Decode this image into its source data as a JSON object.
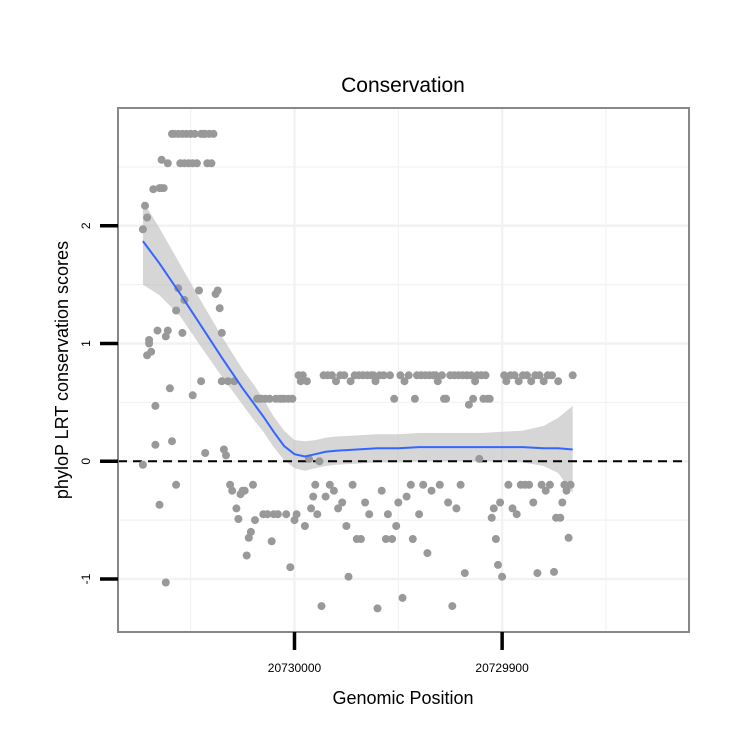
{
  "chart_data": {
    "type": "scatter",
    "title": "Conservation",
    "xlabel": "Genomic Position",
    "ylabel": "phyloP LRT conservation scores",
    "x_reversed": true,
    "xlim": [
      20730085,
      20729810
    ],
    "ylim": [
      -1.45,
      3.0
    ],
    "x_ticks": [
      {
        "value": 20730000,
        "label": "20730000"
      },
      {
        "value": 20729900,
        "label": "20729900"
      }
    ],
    "y_ticks": [
      {
        "value": -1,
        "label": "-1"
      },
      {
        "value": 0,
        "label": "0"
      },
      {
        "value": 1,
        "label": "1"
      },
      {
        "value": 2,
        "label": "2"
      }
    ],
    "reference_line": {
      "y": 0,
      "style": "dashed"
    },
    "colors": {
      "points": "#999999",
      "smooth": "#3366ff",
      "band": "#bbbbbb",
      "panel_border": "#888888",
      "grid": "#f2f2f2"
    },
    "points": [
      {
        "x": 20730073,
        "y": -0.03
      },
      {
        "x": 20730073,
        "y": 1.97
      },
      {
        "x": 20730072,
        "y": 2.17
      },
      {
        "x": 20730071,
        "y": 2.07
      },
      {
        "x": 20730071,
        "y": 0.9
      },
      {
        "x": 20730070,
        "y": 1.0
      },
      {
        "x": 20730070,
        "y": 1.03
      },
      {
        "x": 20730069,
        "y": 0.93
      },
      {
        "x": 20730068,
        "y": 2.31
      },
      {
        "x": 20730067,
        "y": 0.14
      },
      {
        "x": 20730067,
        "y": 0.47
      },
      {
        "x": 20730066,
        "y": 1.11
      },
      {
        "x": 20730065,
        "y": -0.37
      },
      {
        "x": 20730065,
        "y": 2.32
      },
      {
        "x": 20730064,
        "y": 2.56
      },
      {
        "x": 20730064,
        "y": 2.32
      },
      {
        "x": 20730063,
        "y": 2.32
      },
      {
        "x": 20730062,
        "y": 1.06
      },
      {
        "x": 20730062,
        "y": -1.03
      },
      {
        "x": 20730061,
        "y": 2.53
      },
      {
        "x": 20730061,
        "y": 1.11
      },
      {
        "x": 20730060,
        "y": 0.62
      },
      {
        "x": 20730059,
        "y": 0.17
      },
      {
        "x": 20730059,
        "y": 2.78
      },
      {
        "x": 20730058,
        "y": 2.78
      },
      {
        "x": 20730057,
        "y": -0.2
      },
      {
        "x": 20730057,
        "y": 1.28
      },
      {
        "x": 20730056,
        "y": 1.47
      },
      {
        "x": 20730056,
        "y": 2.78
      },
      {
        "x": 20730055,
        "y": 2.53
      },
      {
        "x": 20730054,
        "y": 1.09
      },
      {
        "x": 20730054,
        "y": 2.78
      },
      {
        "x": 20730053,
        "y": 2.53
      },
      {
        "x": 20730053,
        "y": 1.37
      },
      {
        "x": 20730052,
        "y": 2.78
      },
      {
        "x": 20730051,
        "y": 2.53
      },
      {
        "x": 20730050,
        "y": 2.78
      },
      {
        "x": 20730049,
        "y": 0.56
      },
      {
        "x": 20730049,
        "y": 2.53
      },
      {
        "x": 20730048,
        "y": 2.78
      },
      {
        "x": 20730047,
        "y": 2.53
      },
      {
        "x": 20730046,
        "y": 1.45
      },
      {
        "x": 20730045,
        "y": 0.68
      },
      {
        "x": 20730045,
        "y": 2.78
      },
      {
        "x": 20730044,
        "y": 2.78
      },
      {
        "x": 20730043,
        "y": 0.07
      },
      {
        "x": 20730043,
        "y": 2.78
      },
      {
        "x": 20730042,
        "y": 2.53
      },
      {
        "x": 20730041,
        "y": 2.78
      },
      {
        "x": 20730040,
        "y": 2.53
      },
      {
        "x": 20730039,
        "y": 2.78
      },
      {
        "x": 20730038,
        "y": 1.42
      },
      {
        "x": 20730037,
        "y": 1.45
      },
      {
        "x": 20730036,
        "y": 1.3
      },
      {
        "x": 20730035,
        "y": 1.09
      },
      {
        "x": 20730035,
        "y": 0.68
      },
      {
        "x": 20730034,
        "y": 0.1
      },
      {
        "x": 20730033,
        "y": 0.05
      },
      {
        "x": 20730032,
        "y": 0.68
      },
      {
        "x": 20730031,
        "y": -0.2
      },
      {
        "x": 20730030,
        "y": -0.25
      },
      {
        "x": 20730029,
        "y": 0.68
      },
      {
        "x": 20730028,
        "y": -0.4
      },
      {
        "x": 20730027,
        "y": -0.49
      },
      {
        "x": 20730026,
        "y": -0.28
      },
      {
        "x": 20730025,
        "y": -0.25
      },
      {
        "x": 20730024,
        "y": -0.25
      },
      {
        "x": 20730023,
        "y": -0.8
      },
      {
        "x": 20730022,
        "y": -0.65
      },
      {
        "x": 20730021,
        "y": -0.6
      },
      {
        "x": 20730020,
        "y": -0.2
      },
      {
        "x": 20730019,
        "y": -0.5
      },
      {
        "x": 20730018,
        "y": 0.53
      },
      {
        "x": 20730017,
        "y": 0.53
      },
      {
        "x": 20730016,
        "y": 0.53
      },
      {
        "x": 20730015,
        "y": -0.45
      },
      {
        "x": 20730014,
        "y": 0.53
      },
      {
        "x": 20730013,
        "y": -0.45
      },
      {
        "x": 20730012,
        "y": 0.53
      },
      {
        "x": 20730011,
        "y": -0.68
      },
      {
        "x": 20730010,
        "y": -0.45
      },
      {
        "x": 20730009,
        "y": 0.53
      },
      {
        "x": 20730008,
        "y": -0.45
      },
      {
        "x": 20730007,
        "y": 0.53
      },
      {
        "x": 20730006,
        "y": 0.53
      },
      {
        "x": 20730005,
        "y": 0.53
      },
      {
        "x": 20730004,
        "y": -0.45
      },
      {
        "x": 20730003,
        "y": 0.53
      },
      {
        "x": 20730002,
        "y": -0.9
      },
      {
        "x": 20730001,
        "y": 0.53
      },
      {
        "x": 20730000,
        "y": -0.5
      },
      {
        "x": 20729999,
        "y": -0.45
      },
      {
        "x": 20729998,
        "y": 0.73
      },
      {
        "x": 20729997,
        "y": 0.68
      },
      {
        "x": 20729996,
        "y": 0.73
      },
      {
        "x": 20729995,
        "y": -0.55
      },
      {
        "x": 20729994,
        "y": 0.68
      },
      {
        "x": 20729993,
        "y": 0.02
      },
      {
        "x": 20729992,
        "y": -0.4
      },
      {
        "x": 20729991,
        "y": -0.3
      },
      {
        "x": 20729990,
        "y": -0.2
      },
      {
        "x": 20729989,
        "y": -0.45
      },
      {
        "x": 20729988,
        "y": 0.0
      },
      {
        "x": 20729987,
        "y": -1.23
      },
      {
        "x": 20729986,
        "y": 0.73
      },
      {
        "x": 20729985,
        "y": -0.3
      },
      {
        "x": 20729984,
        "y": 0.73
      },
      {
        "x": 20729983,
        "y": -0.2
      },
      {
        "x": 20729982,
        "y": 0.73
      },
      {
        "x": 20729981,
        "y": -0.25
      },
      {
        "x": 20729980,
        "y": 0.68
      },
      {
        "x": 20729979,
        "y": -0.4
      },
      {
        "x": 20729978,
        "y": 0.73
      },
      {
        "x": 20729977,
        "y": -0.35
      },
      {
        "x": 20729976,
        "y": 0.73
      },
      {
        "x": 20729975,
        "y": -0.55
      },
      {
        "x": 20729974,
        "y": -0.98
      },
      {
        "x": 20729973,
        "y": 0.68
      },
      {
        "x": 20729972,
        "y": -0.2
      },
      {
        "x": 20729971,
        "y": 0.73
      },
      {
        "x": 20729970,
        "y": -0.66
      },
      {
        "x": 20729969,
        "y": 0.73
      },
      {
        "x": 20729968,
        "y": -0.66
      },
      {
        "x": 20729967,
        "y": 0.73
      },
      {
        "x": 20729966,
        "y": -0.35
      },
      {
        "x": 20729965,
        "y": 0.73
      },
      {
        "x": 20729964,
        "y": -0.45
      },
      {
        "x": 20729963,
        "y": 0.73
      },
      {
        "x": 20729962,
        "y": 0.73
      },
      {
        "x": 20729961,
        "y": 0.68
      },
      {
        "x": 20729960,
        "y": -1.25
      },
      {
        "x": 20729959,
        "y": 0.73
      },
      {
        "x": 20729958,
        "y": -0.25
      },
      {
        "x": 20729957,
        "y": 0.73
      },
      {
        "x": 20729956,
        "y": -0.66
      },
      {
        "x": 20729955,
        "y": -0.45
      },
      {
        "x": 20729954,
        "y": 0.73
      },
      {
        "x": 20729953,
        "y": -0.66
      },
      {
        "x": 20729952,
        "y": 0.53
      },
      {
        "x": 20729951,
        "y": -0.55
      },
      {
        "x": 20729950,
        "y": -0.35
      },
      {
        "x": 20729949,
        "y": 0.73
      },
      {
        "x": 20729948,
        "y": -1.16
      },
      {
        "x": 20729947,
        "y": 0.68
      },
      {
        "x": 20729946,
        "y": -0.3
      },
      {
        "x": 20729945,
        "y": 0.73
      },
      {
        "x": 20729944,
        "y": -0.2
      },
      {
        "x": 20729943,
        "y": -0.66
      },
      {
        "x": 20729942,
        "y": 0.53
      },
      {
        "x": 20729941,
        "y": 0.73
      },
      {
        "x": 20729940,
        "y": -0.45
      },
      {
        "x": 20729939,
        "y": 0.73
      },
      {
        "x": 20729938,
        "y": -0.2
      },
      {
        "x": 20729937,
        "y": 0.73
      },
      {
        "x": 20729936,
        "y": -0.78
      },
      {
        "x": 20729935,
        "y": 0.73
      },
      {
        "x": 20729934,
        "y": -0.25
      },
      {
        "x": 20729933,
        "y": 0.73
      },
      {
        "x": 20729932,
        "y": 0.73
      },
      {
        "x": 20729931,
        "y": 0.68
      },
      {
        "x": 20729930,
        "y": -0.2
      },
      {
        "x": 20729929,
        "y": 0.73
      },
      {
        "x": 20729928,
        "y": 0.53
      },
      {
        "x": 20729927,
        "y": 0.53
      },
      {
        "x": 20729926,
        "y": -0.35
      },
      {
        "x": 20729925,
        "y": 0.73
      },
      {
        "x": 20729924,
        "y": -1.23
      },
      {
        "x": 20729923,
        "y": 0.73
      },
      {
        "x": 20729922,
        "y": -0.4
      },
      {
        "x": 20729921,
        "y": 0.73
      },
      {
        "x": 20729920,
        "y": -0.2
      },
      {
        "x": 20729919,
        "y": 0.73
      },
      {
        "x": 20729918,
        "y": -0.95
      },
      {
        "x": 20729917,
        "y": 0.73
      },
      {
        "x": 20729916,
        "y": 0.48
      },
      {
        "x": 20729915,
        "y": 0.73
      },
      {
        "x": 20729914,
        "y": 0.53
      },
      {
        "x": 20729913,
        "y": 0.68
      },
      {
        "x": 20729912,
        "y": 0.73
      },
      {
        "x": 20729911,
        "y": 0.02
      },
      {
        "x": 20729910,
        "y": 0.73
      },
      {
        "x": 20729909,
        "y": 0.53
      },
      {
        "x": 20729908,
        "y": 0.73
      },
      {
        "x": 20729907,
        "y": 0.53
      },
      {
        "x": 20729906,
        "y": 0.53
      },
      {
        "x": 20729905,
        "y": -0.48
      },
      {
        "x": 20729904,
        "y": -0.4
      },
      {
        "x": 20729903,
        "y": -0.66
      },
      {
        "x": 20729902,
        "y": -0.88
      },
      {
        "x": 20729901,
        "y": -0.35
      },
      {
        "x": 20729900,
        "y": -0.98
      },
      {
        "x": 20729899,
        "y": 0.73
      },
      {
        "x": 20729898,
        "y": 0.68
      },
      {
        "x": 20729897,
        "y": -0.2
      },
      {
        "x": 20729896,
        "y": 0.73
      },
      {
        "x": 20729895,
        "y": -0.4
      },
      {
        "x": 20729894,
        "y": 0.73
      },
      {
        "x": 20729893,
        "y": -0.45
      },
      {
        "x": 20729892,
        "y": 0.68
      },
      {
        "x": 20729891,
        "y": -0.2
      },
      {
        "x": 20729890,
        "y": 0.73
      },
      {
        "x": 20729889,
        "y": -0.2
      },
      {
        "x": 20729888,
        "y": 0.73
      },
      {
        "x": 20729887,
        "y": -0.2
      },
      {
        "x": 20729886,
        "y": 0.68
      },
      {
        "x": 20729885,
        "y": -0.35
      },
      {
        "x": 20729884,
        "y": 0.73
      },
      {
        "x": 20729883,
        "y": -0.95
      },
      {
        "x": 20729882,
        "y": 0.73
      },
      {
        "x": 20729881,
        "y": -0.2
      },
      {
        "x": 20729880,
        "y": 0.68
      },
      {
        "x": 20729879,
        "y": -0.25
      },
      {
        "x": 20729878,
        "y": 0.73
      },
      {
        "x": 20729877,
        "y": -0.2
      },
      {
        "x": 20729876,
        "y": 0.73
      },
      {
        "x": 20729875,
        "y": -0.94
      },
      {
        "x": 20729874,
        "y": -0.48
      },
      {
        "x": 20729873,
        "y": 0.68
      },
      {
        "x": 20729872,
        "y": -0.48
      },
      {
        "x": 20729871,
        "y": -0.35
      },
      {
        "x": 20729870,
        "y": -0.2
      },
      {
        "x": 20729869,
        "y": -0.25
      },
      {
        "x": 20729868,
        "y": -0.65
      },
      {
        "x": 20729867,
        "y": -0.2
      },
      {
        "x": 20729866,
        "y": 0.73
      }
    ],
    "smooth_fit": [
      {
        "x": 20730073,
        "y": 1.87,
        "lo": 1.5,
        "hi": 2.21
      },
      {
        "x": 20730065,
        "y": 1.68,
        "lo": 1.41,
        "hi": 1.98
      },
      {
        "x": 20730055,
        "y": 1.42,
        "lo": 1.23,
        "hi": 1.67
      },
      {
        "x": 20730045,
        "y": 1.15,
        "lo": 0.97,
        "hi": 1.36
      },
      {
        "x": 20730035,
        "y": 0.88,
        "lo": 0.72,
        "hi": 1.06
      },
      {
        "x": 20730025,
        "y": 0.62,
        "lo": 0.48,
        "hi": 0.78
      },
      {
        "x": 20730020,
        "y": 0.5,
        "lo": 0.36,
        "hi": 0.66
      },
      {
        "x": 20730015,
        "y": 0.38,
        "lo": 0.25,
        "hi": 0.53
      },
      {
        "x": 20730010,
        "y": 0.25,
        "lo": 0.12,
        "hi": 0.38
      },
      {
        "x": 20730005,
        "y": 0.13,
        "lo": 0.01,
        "hi": 0.26
      },
      {
        "x": 20730000,
        "y": 0.06,
        "lo": -0.06,
        "hi": 0.18
      },
      {
        "x": 20729995,
        "y": 0.04,
        "lo": -0.08,
        "hi": 0.17
      },
      {
        "x": 20729990,
        "y": 0.06,
        "lo": -0.06,
        "hi": 0.18
      },
      {
        "x": 20729985,
        "y": 0.08,
        "lo": -0.04,
        "hi": 0.2
      },
      {
        "x": 20729980,
        "y": 0.09,
        "lo": -0.03,
        "hi": 0.21
      },
      {
        "x": 20729970,
        "y": 0.1,
        "lo": -0.02,
        "hi": 0.22
      },
      {
        "x": 20729960,
        "y": 0.11,
        "lo": -0.01,
        "hi": 0.23
      },
      {
        "x": 20729950,
        "y": 0.11,
        "lo": -0.01,
        "hi": 0.23
      },
      {
        "x": 20729940,
        "y": 0.12,
        "lo": 0.0,
        "hi": 0.24
      },
      {
        "x": 20729930,
        "y": 0.12,
        "lo": 0.0,
        "hi": 0.24
      },
      {
        "x": 20729920,
        "y": 0.12,
        "lo": 0.0,
        "hi": 0.24
      },
      {
        "x": 20729910,
        "y": 0.12,
        "lo": 0.0,
        "hi": 0.24
      },
      {
        "x": 20729900,
        "y": 0.12,
        "lo": 0.0,
        "hi": 0.25
      },
      {
        "x": 20729890,
        "y": 0.12,
        "lo": -0.01,
        "hi": 0.26
      },
      {
        "x": 20729880,
        "y": 0.11,
        "lo": -0.04,
        "hi": 0.3
      },
      {
        "x": 20729873,
        "y": 0.11,
        "lo": -0.1,
        "hi": 0.37
      },
      {
        "x": 20729866,
        "y": 0.1,
        "lo": -0.27,
        "hi": 0.47
      }
    ]
  }
}
